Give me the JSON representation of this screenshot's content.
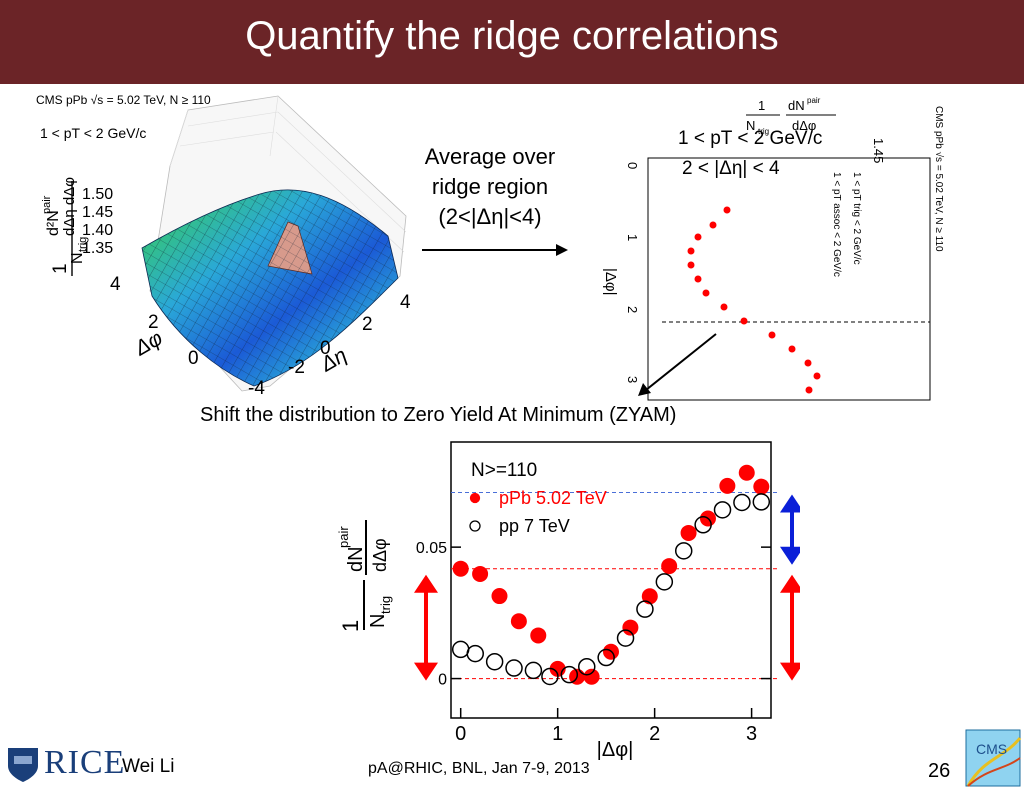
{
  "slide": {
    "title": "Quantify the ridge correlations",
    "arrow_note_lines": [
      "Average over",
      "ridge region",
      "(2<|Δη|<4)"
    ],
    "zyam_caption": "Shift the distribution to Zero Yield At Minimum (ZYAM)",
    "footer_author": "Wei Li",
    "footer_event": "pA@RHIC, BNL, Jan 7-9, 2013",
    "page_number": "26",
    "logo_rice": "RICE",
    "logo_cms": "CMS"
  },
  "surface_plot": {
    "header": "CMS pPb √s = 5.02 TeV, N ≥ 110",
    "pt_label": "1 < pT < 2 GeV/c",
    "z_ticks": [
      "1.50",
      "1.45",
      "1.40",
      "1.35"
    ],
    "phi_ticks": [
      "4",
      "2",
      "0"
    ],
    "eta_ticks": [
      "4",
      "2",
      "0",
      "-2",
      "-4"
    ],
    "phi_axis": "Δφ",
    "eta_axis": "Δη"
  },
  "rotated_plot": {
    "header": "CMS pPb √s = 5.02 TeV, N ≥ 110",
    "trig_label": "1 < pT trig < 2 GeV/c",
    "assoc_label": "1 < pT assoc < 2 GeV/c",
    "overlay_pt": "1 < pT < 2 GeV/c",
    "overlay_eta": "2 < |Δη| < 4",
    "phi_axis": "|Δφ|",
    "phi_ticks": [
      "0",
      "1",
      "2",
      "3"
    ],
    "y_tick": "1.45",
    "ylabel": "1/Ntrig dNpair/dΔφ"
  },
  "chart_data": {
    "type": "scatter",
    "title": "",
    "annotation": "N>=110",
    "xlabel": "|Δφ|",
    "ylabel": "1/Ntrig dNpair/dΔφ",
    "x_ticks": [
      "0",
      "1",
      "2",
      "3"
    ],
    "y_ticks": [
      "0.05",
      "0"
    ],
    "xlim": [
      -0.1,
      3.2
    ],
    "ylim": [
      -0.015,
      0.09
    ],
    "series": [
      {
        "name": "pPb 5.02 TeV",
        "color": "#ff0000",
        "marker": "filled-circle",
        "x": [
          0.0,
          0.2,
          0.4,
          0.6,
          0.8,
          1.0,
          1.2,
          1.35,
          1.55,
          1.75,
          1.95,
          2.15,
          2.35,
          2.55,
          2.75,
          2.95,
          3.1
        ],
        "y": [
          0.0418,
          0.0398,
          0.0314,
          0.0218,
          0.0164,
          0.0037,
          0.0007,
          0.0007,
          0.0102,
          0.0194,
          0.0313,
          0.0428,
          0.0554,
          0.0609,
          0.0733,
          0.0783,
          0.073
        ]
      },
      {
        "name": "pp 7 TeV",
        "color": "#000000",
        "marker": "open-circle",
        "x": [
          0.0,
          0.15,
          0.35,
          0.55,
          0.75,
          0.92,
          1.12,
          1.3,
          1.5,
          1.7,
          1.9,
          2.1,
          2.3,
          2.5,
          2.7,
          2.9,
          3.1
        ],
        "y": [
          0.0111,
          0.0095,
          0.0064,
          0.004,
          0.0031,
          0.0008,
          0.0015,
          0.0045,
          0.008,
          0.0154,
          0.0264,
          0.0368,
          0.0486,
          0.0585,
          0.0642,
          0.067,
          0.0672
        ]
      }
    ],
    "reference_lines": [
      {
        "y": 0.0708,
        "color": "#4a6fd8",
        "style": "dashed"
      },
      {
        "y": 0.0418,
        "color": "#ff0000",
        "style": "dashed"
      },
      {
        "y": 0.0,
        "color": "#ff0000",
        "style": "dashed"
      }
    ],
    "legend_position": "top-left"
  }
}
